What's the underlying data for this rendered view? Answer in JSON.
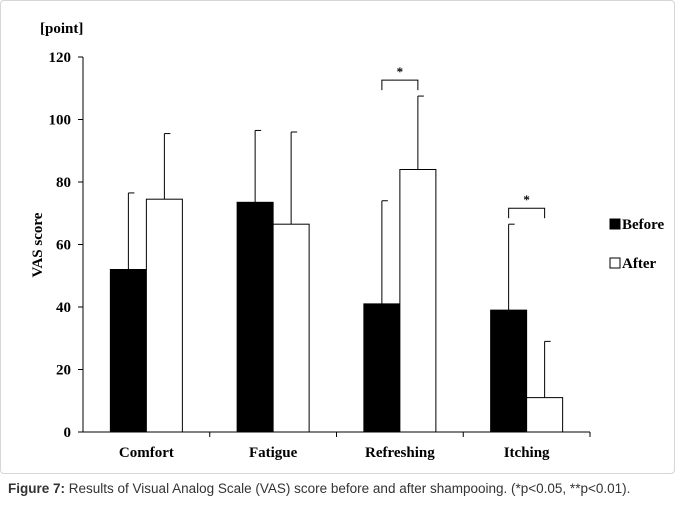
{
  "chart_data": {
    "type": "bar",
    "y_unit_label": "[point]",
    "ylabel": "VAS score",
    "xlabel": "",
    "ylim": [
      0,
      120
    ],
    "yticks": [
      0,
      20,
      40,
      60,
      80,
      100,
      120
    ],
    "categories": [
      "Comfort",
      "Fatigue",
      "Refreshing",
      "Itching"
    ],
    "series": [
      {
        "name": "Before",
        "values": [
          52,
          73.5,
          41,
          39
        ],
        "error_plus": [
          24.5,
          23,
          33,
          27.5
        ],
        "color": "#000000"
      },
      {
        "name": "After",
        "values": [
          74.5,
          66.5,
          84,
          11
        ],
        "error_plus": [
          21,
          29.5,
          23.5,
          18
        ],
        "color": "#ffffff"
      }
    ],
    "significance": [
      {
        "category": "Refreshing",
        "label": "*"
      },
      {
        "category": "Itching",
        "label": "*"
      }
    ],
    "legend_position": "right",
    "grid": false
  },
  "caption": {
    "label": "Figure 7:",
    "text": " Results of Visual Analog Scale (VAS) score before and after shampooing. (*p<0.05, **p<0.01)."
  }
}
